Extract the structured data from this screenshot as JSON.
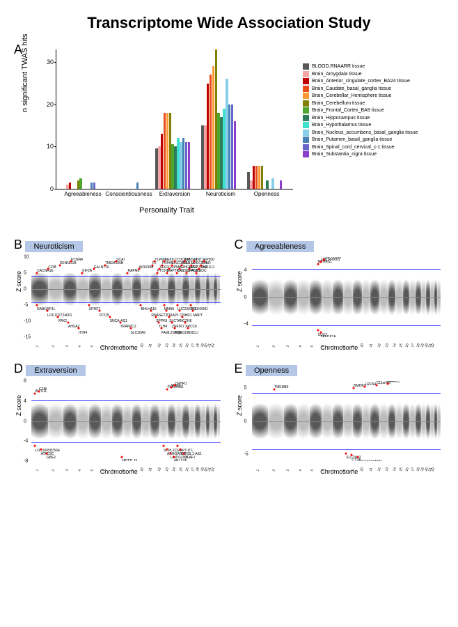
{
  "title": "Transcriptome Wide Association Study",
  "panelA": {
    "label": "A",
    "ylabel": "n significant TWAS hits",
    "xlabel": "Personality Trait",
    "ylim": [
      0,
      33
    ],
    "yticks": [
      0,
      10,
      20,
      30
    ],
    "traits": [
      "Agreeableness",
      "Conscientiousness",
      "Extraversion",
      "Neuroticism",
      "Openness"
    ],
    "tissues": [
      {
        "name": "BLOOD.RNAARR tissue",
        "color": "#595959"
      },
      {
        "name": "Brain_Amygdala tissue",
        "color": "#f4a6a6"
      },
      {
        "name": "Brain_Anterior_cingulate_cortex_BA24 tissue",
        "color": "#c00000"
      },
      {
        "name": "Brain_Caudate_basal_ganglia tissue",
        "color": "#e84c1a"
      },
      {
        "name": "Brain_Cerebellar_Hemisphere tissue",
        "color": "#ff9933"
      },
      {
        "name": "Brain_Cerebellum tissue",
        "color": "#808000"
      },
      {
        "name": "Brain_Frontal_Cortex_BA9 tissue",
        "color": "#4ea72e"
      },
      {
        "name": "Brain_Hippocampus tissue",
        "color": "#2e7d5a"
      },
      {
        "name": "Brain_Hypothalamus tissue",
        "color": "#40e0d0"
      },
      {
        "name": "Brain_Nucleus_accumbens_basal_ganglia tissue",
        "color": "#87ceeb"
      },
      {
        "name": "Brain_Putamen_basal_ganglia tissue",
        "color": "#4682b4"
      },
      {
        "name": "Brain_Spinal_cord_cervical_c-1 tissue",
        "color": "#6666cc"
      },
      {
        "name": "Brain_Substantia_nigra tissue",
        "color": "#8b3dcc"
      }
    ],
    "values": [
      [
        0,
        1,
        1.5,
        0,
        0,
        2,
        2.5,
        0,
        0,
        0,
        1.5,
        1.5,
        0
      ],
      [
        0,
        0,
        0,
        0,
        0,
        0,
        0,
        0,
        0,
        0,
        1.5,
        0,
        0
      ],
      [
        9.5,
        10,
        13,
        18,
        18,
        18,
        10.5,
        10,
        12,
        11,
        12,
        11,
        11
      ],
      [
        15,
        15,
        25,
        27,
        29,
        33,
        18,
        17,
        19,
        26,
        20,
        20,
        16
      ],
      [
        4,
        2,
        5.5,
        5.5,
        5.5,
        5.5,
        0,
        2,
        0,
        2.5,
        0,
        0,
        2
      ]
    ]
  },
  "manhattan": {
    "ylabel": "Z score",
    "xlabel": "Chromosome",
    "chrom_colors": [
      "#3a3a3a",
      "#b0b0b0"
    ],
    "sig_color": "#4040ff",
    "point_color": "#ff0000",
    "panels": [
      {
        "label": "B",
        "name": "Neuroticism",
        "ylim": [
          -15,
          10
        ],
        "yticks": [
          -15,
          -10,
          -5,
          0,
          5,
          10
        ],
        "sig_lines": [
          4.2,
          -4.2
        ],
        "genes_top": [
          "CACNA1E",
          "CZIB",
          "DENND1B",
          "KCNN4",
          "KIF2A",
          "GALNT10",
          "TMEM106B",
          "SCAI",
          "RAPN6",
          "WDR35B",
          "F2",
          "YLPM1",
          "PTCH1",
          "SDR3",
          "PKPAN",
          "NEK9",
          "MAPT-IT1",
          "LRPMI",
          "LINC02216",
          "CCDC103",
          "KANSL1-AS1",
          "ARHGAP27",
          "ARL17A",
          "KANSL1",
          "SPPL2C",
          "LRRC37A2",
          "LRRC37A",
          "WNT3",
          "PNDC",
          "TSHR1L2",
          "PFKD",
          "EP500"
        ],
        "genes_bottom": [
          "RABGAP1L",
          "LOC102724601",
          "VRK2",
          "AHSA2",
          "ITIH4",
          "SPMT1",
          "PCCB",
          "SNCA-AS1",
          "TRAPPC2",
          "SLC30A9",
          "BHLHA15",
          "RNASET2",
          "SPPK9",
          "TLH4",
          "FAML2SRQ5",
          "MMN5",
          "TRIAP1",
          "SLCTAN",
          "ZNF507",
          "TMED19",
          "LUC230202",
          "CNHR1",
          "CZH8",
          "XRCC6",
          "NNCLI",
          "PLEK06M1",
          "MAPT"
        ]
      },
      {
        "label": "C",
        "name": "Agreeableness",
        "ylim": [
          -6,
          6
        ],
        "yticks": [
          -4,
          0,
          4
        ],
        "sig_lines": [
          4.2,
          -4.2
        ],
        "genes_top": [
          "MFHAS1",
          "LINCR-0001",
          "LINC00599"
        ],
        "genes_bottom": [
          "SOX7",
          "FAM167A"
        ]
      },
      {
        "label": "D",
        "name": "Extraversion",
        "ylim": [
          -8,
          8
        ],
        "yticks": [
          -8,
          -4,
          0,
          4,
          8
        ],
        "sig_lines": [
          4.2,
          -4.2
        ],
        "genes_top": [
          "INTS11",
          "CZIB",
          "PLEXHM1",
          "MAPT",
          "CRHR1"
        ],
        "genes_bottom": [
          "LOC100587564",
          "ATAD3C",
          "GBE2",
          "METTL15",
          "SPPL2C",
          "ARHGAP27",
          "LINC02210",
          "ARL17A",
          "MAPT-IT1",
          "KANSL1-AS1",
          "DCAF7"
        ]
      },
      {
        "label": "E",
        "name": "Openness",
        "ylim": [
          -6,
          6
        ],
        "yticks": [
          -5,
          0,
          5
        ],
        "sig_lines": [
          4.2,
          -4.2
        ],
        "genes_top": [
          "TMEM89",
          "BMHR3",
          "LRFN4",
          "C11orf80",
          "MAPK3"
        ],
        "genes_bottom": [
          "SLC29A2",
          "CTSF",
          "LOC102724084"
        ]
      }
    ]
  }
}
